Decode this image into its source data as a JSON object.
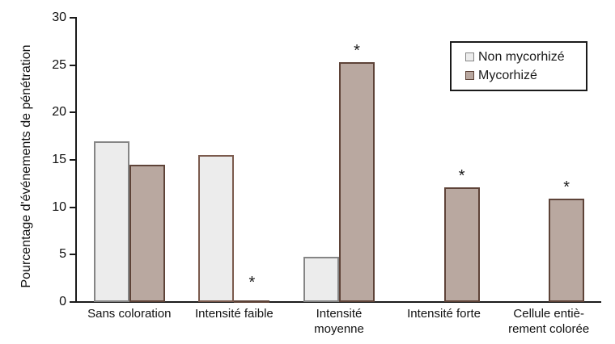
{
  "figure": {
    "background": "#ffffff",
    "text_color": "#1a1a1a",
    "axis_color": "#1a1a1a"
  },
  "chart_data": {
    "type": "bar",
    "title": "",
    "xlabel": "",
    "ylabel": "Pourcentage d'événements de pénétration",
    "ylim": [
      0,
      30
    ],
    "yticks": [
      0,
      5,
      10,
      15,
      20,
      25,
      30
    ],
    "grid": false,
    "legend_position": "top-right",
    "significance_marker": "*",
    "categories": [
      {
        "label": "Sans coloration",
        "lines": [
          "Sans coloration"
        ]
      },
      {
        "label": "Intensité faible",
        "lines": [
          "Intensité faible"
        ]
      },
      {
        "label": "Intensité moyenne",
        "lines": [
          "Intensité",
          "moyenne"
        ]
      },
      {
        "label": "Intensité forte",
        "lines": [
          "Intensité forte"
        ]
      },
      {
        "label": "Cellule entièrement colorée",
        "lines": [
          "Cellule entiè-",
          "rement colorée"
        ]
      }
    ],
    "series": [
      {
        "name": "Non mycorhizé",
        "slug": "non-mycorhize",
        "values": [
          17,
          15.5,
          4.8,
          0,
          0
        ],
        "fill": "#ececec",
        "stroke": "#858585",
        "stroke_overrides": {
          "1": "#7b5a4d"
        },
        "significant": [
          false,
          false,
          false,
          false,
          false
        ]
      },
      {
        "name": "Mycorhizé",
        "slug": "mycorhize",
        "values": [
          14.5,
          0,
          25.3,
          12.1,
          10.9
        ],
        "fill": "#b9a8a0",
        "stroke": "#5e4338",
        "significant": [
          false,
          true,
          true,
          true,
          true
        ],
        "draw_zero_as_line": true
      }
    ]
  }
}
